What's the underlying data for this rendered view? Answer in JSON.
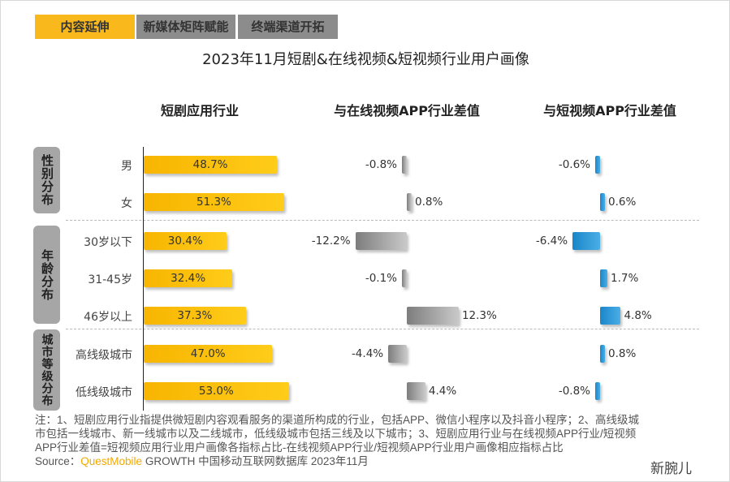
{
  "tabs": [
    {
      "label": "内容延伸",
      "active": true
    },
    {
      "label": "新媒体矩阵赋能",
      "active": false
    },
    {
      "label": "终端渠道开拓",
      "active": false
    }
  ],
  "colors": {
    "active_tab": "#f9b81b",
    "inactive_tab": "#8c8c8c",
    "industry_bar": "#fbc214",
    "online_video_bar": "#8a8a8a",
    "short_video_bar": "#2f9bd6"
  },
  "watermark": "QUEST MOBILE",
  "chart_data": {
    "type": "bar",
    "title": "2023年11月短剧&在线视频&短视频行业用户画像",
    "groups": [
      {
        "label": "性别分布",
        "rows": [
          "男",
          "女"
        ]
      },
      {
        "label": "年龄分布",
        "rows": [
          "30岁以下",
          "31-45岁",
          "46岁以上"
        ]
      },
      {
        "label": "城市等级分布",
        "rows": [
          "高线级城市",
          "低线级城市"
        ]
      }
    ],
    "categories": [
      "男",
      "女",
      "30岁以下",
      "31-45岁",
      "46岁以上",
      "高线级城市",
      "低线级城市"
    ],
    "series": [
      {
        "name": "短剧应用行业",
        "values": [
          48.7,
          51.3,
          30.4,
          32.4,
          37.3,
          47.0,
          53.0
        ],
        "labels": [
          "48.7%",
          "51.3%",
          "30.4%",
          "32.4%",
          "37.3%",
          "47.0%",
          "53.0%"
        ]
      },
      {
        "name": "与在线视频APP行业差值",
        "values": [
          -0.8,
          0.8,
          -12.2,
          -0.1,
          12.3,
          -4.4,
          4.4
        ],
        "labels": [
          "-0.8%",
          "0.8%",
          "-12.2%",
          "-0.1%",
          "12.3%",
          "-4.4%",
          "4.4%"
        ]
      },
      {
        "name": "与短视频APP行业差值",
        "values": [
          -0.6,
          0.6,
          -6.4,
          1.7,
          4.8,
          0.8,
          -0.8
        ],
        "labels": [
          "-0.6%",
          "0.6%",
          "-6.4%",
          "1.7%",
          "4.8%",
          "0.8%",
          "-0.8%"
        ]
      }
    ]
  },
  "note": {
    "text": "注：1、短剧应用行业指提供微短剧内容观看服务的渠道所构成的行业，包括APP、微信小程序以及抖音小程序；2、高线级城市包括一线城市、新一线城市以及二线城市，低线级城市包括三线及以下城市；3、短剧应用行业与在线视频APP行业/短视频APP行业差值=短视频应用行业用户画像各指标占比-在线视频APP行业/短视频APP行业用户画像相应指标占比",
    "source_prefix": "Source：",
    "source_brand": "QuestMobile",
    "source_rest": " GROWTH 中国移动互联网数据库 2023年11月"
  },
  "wechat_mark": "新腕儿"
}
